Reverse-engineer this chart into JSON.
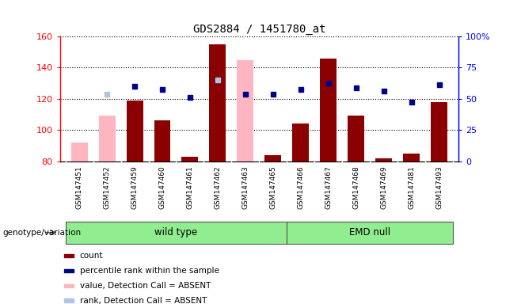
{
  "title": "GDS2884 / 1451780_at",
  "samples": [
    "GSM147451",
    "GSM147452",
    "GSM147459",
    "GSM147460",
    "GSM147461",
    "GSM147462",
    "GSM147463",
    "GSM147465",
    "GSM147466",
    "GSM147467",
    "GSM147468",
    "GSM147469",
    "GSM147481",
    "GSM147493"
  ],
  "count_values": [
    null,
    null,
    119,
    106,
    83,
    155,
    null,
    84,
    104,
    146,
    109,
    82,
    85,
    118
  ],
  "count_absent": [
    92,
    109,
    null,
    null,
    null,
    null,
    145,
    null,
    null,
    null,
    null,
    null,
    null,
    null
  ],
  "percentile_rank": [
    null,
    null,
    128,
    126,
    121,
    132,
    123,
    123,
    126,
    130,
    127,
    125,
    118,
    129
  ],
  "percentile_rank_absent": [
    null,
    123,
    null,
    null,
    null,
    132,
    null,
    null,
    null,
    null,
    null,
    null,
    null,
    null
  ],
  "ylim_left": [
    80,
    160
  ],
  "ylim_right": [
    0,
    100
  ],
  "yticks_left": [
    80,
    100,
    120,
    140,
    160
  ],
  "yticks_right": [
    0,
    25,
    50,
    75,
    100
  ],
  "ytick_labels_right": [
    "0",
    "25",
    "50",
    "75",
    "100%"
  ],
  "wt_count": 8,
  "emd_count": 6,
  "group_color": "#90EE90",
  "bar_color_present": "#8B0000",
  "bar_color_absent": "#FFB6C1",
  "dot_color_present": "#00008B",
  "dot_color_absent": "#B0C4DE",
  "background_color": "#ffffff",
  "genotype_label": "genotype/variation"
}
